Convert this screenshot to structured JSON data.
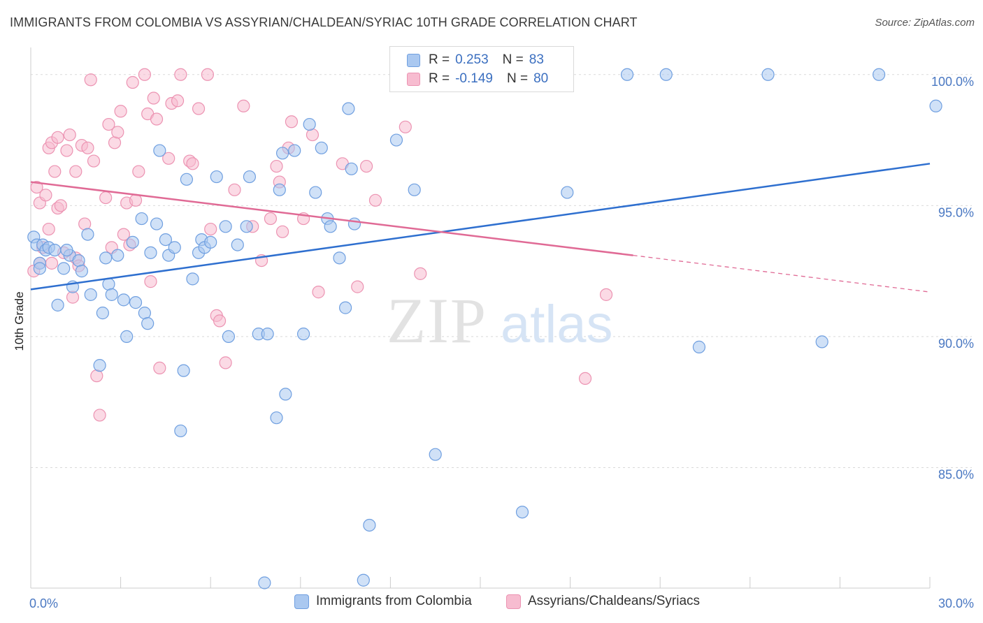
{
  "title": "IMMIGRANTS FROM COLOMBIA VS ASSYRIAN/CHALDEAN/SYRIAC 10TH GRADE CORRELATION CHART",
  "source": "Source: ZipAtlas.com",
  "watermark": {
    "zip": "ZIP",
    "atlas": "atlas"
  },
  "colors": {
    "blue_fill": "#aac8f0",
    "blue_stroke": "#6f9fe0",
    "blue_line": "#2e6fcf",
    "pink_fill": "#f7bcd0",
    "pink_stroke": "#ec93b2",
    "pink_line": "#e06a95",
    "tick_text": "#4a78c2",
    "grid": "#d9d9d9"
  },
  "legend": {
    "rows": [
      {
        "r_label": "R =",
        "r_value": "0.253",
        "n_label": "N =",
        "n_value": "83",
        "color": "blue"
      },
      {
        "r_label": "R =",
        "r_value": "-0.149",
        "n_label": "N =",
        "n_value": "80",
        "color": "pink"
      }
    ]
  },
  "bottom_legend": [
    "Immigrants from Colombia",
    "Assyrians/Chaldeans/Syriacs"
  ],
  "chart_data": {
    "type": "scatter",
    "title": "IMMIGRANTS FROM COLOMBIA VS ASSYRIAN/CHALDEAN/SYRIAC 10TH GRADE CORRELATION CHART",
    "xlabel": "",
    "ylabel": "10th Grade",
    "xlim": [
      0,
      30
    ],
    "ylim": [
      80.4,
      101.3
    ],
    "x_tick_labels": [
      "0.0%",
      "30.0%"
    ],
    "y_ticks": [
      85,
      90,
      95,
      100
    ],
    "y_tick_labels": [
      "85.0%",
      "90.0%",
      "95.0%",
      "100.0%"
    ],
    "grid": true,
    "legend_position": "top-center",
    "series": [
      {
        "name": "Immigrants from Colombia",
        "color": "blue",
        "trend": {
          "x0": 0,
          "y0": 91.8,
          "x1": 30,
          "y1": 96.6
        },
        "points": [
          [
            0.1,
            93.8
          ],
          [
            0.2,
            93.5
          ],
          [
            0.3,
            92.8
          ],
          [
            0.4,
            93.5
          ],
          [
            0.5,
            93.3
          ],
          [
            0.6,
            93.4
          ],
          [
            0.8,
            93.3
          ],
          [
            0.9,
            91.2
          ],
          [
            1.1,
            92.6
          ],
          [
            1.3,
            93.1
          ],
          [
            1.4,
            91.9
          ],
          [
            1.6,
            92.9
          ],
          [
            1.7,
            92.5
          ],
          [
            1.9,
            93.9
          ],
          [
            2.0,
            91.6
          ],
          [
            2.3,
            88.9
          ],
          [
            2.4,
            90.9
          ],
          [
            2.5,
            93.0
          ],
          [
            2.6,
            92.0
          ],
          [
            2.7,
            91.6
          ],
          [
            2.9,
            93.1
          ],
          [
            3.1,
            91.4
          ],
          [
            3.2,
            90.0
          ],
          [
            3.4,
            93.6
          ],
          [
            3.5,
            91.3
          ],
          [
            3.7,
            94.5
          ],
          [
            3.8,
            90.9
          ],
          [
            3.9,
            90.5
          ],
          [
            4.0,
            93.2
          ],
          [
            4.2,
            94.3
          ],
          [
            4.3,
            97.1
          ],
          [
            4.5,
            93.7
          ],
          [
            4.6,
            93.1
          ],
          [
            4.8,
            93.4
          ],
          [
            5.0,
            86.4
          ],
          [
            5.1,
            88.7
          ],
          [
            5.2,
            96.0
          ],
          [
            5.4,
            92.2
          ],
          [
            5.6,
            93.2
          ],
          [
            5.7,
            93.7
          ],
          [
            5.8,
            93.4
          ],
          [
            6.0,
            93.6
          ],
          [
            6.2,
            96.1
          ],
          [
            6.5,
            94.2
          ],
          [
            6.6,
            90.0
          ],
          [
            6.9,
            93.5
          ],
          [
            7.2,
            94.2
          ],
          [
            7.3,
            96.1
          ],
          [
            7.6,
            90.1
          ],
          [
            7.8,
            80.6
          ],
          [
            7.9,
            90.1
          ],
          [
            8.2,
            86.9
          ],
          [
            8.3,
            95.6
          ],
          [
            8.4,
            97.0
          ],
          [
            8.5,
            87.8
          ],
          [
            8.8,
            97.1
          ],
          [
            9.1,
            90.1
          ],
          [
            9.3,
            98.1
          ],
          [
            9.5,
            95.5
          ],
          [
            9.7,
            97.2
          ],
          [
            9.9,
            94.5
          ],
          [
            10.0,
            94.2
          ],
          [
            10.3,
            93.0
          ],
          [
            10.5,
            91.1
          ],
          [
            10.6,
            98.7
          ],
          [
            10.7,
            96.4
          ],
          [
            10.8,
            94.3
          ],
          [
            11.1,
            80.7
          ],
          [
            11.3,
            82.8
          ],
          [
            12.2,
            97.5
          ],
          [
            12.8,
            95.6
          ],
          [
            13.5,
            85.5
          ],
          [
            13.6,
            100.0
          ],
          [
            16.4,
            83.3
          ],
          [
            17.9,
            95.5
          ],
          [
            19.9,
            100.0
          ],
          [
            21.2,
            100.0
          ],
          [
            22.3,
            89.6
          ],
          [
            24.6,
            100.0
          ],
          [
            26.4,
            89.8
          ],
          [
            28.3,
            100.0
          ],
          [
            30.2,
            98.8
          ],
          [
            0.3,
            92.6
          ],
          [
            1.2,
            93.3
          ]
        ]
      },
      {
        "name": "Assyrians/Chaldeans/Syriacs",
        "color": "pink",
        "trend": {
          "x0": 0,
          "y0": 95.9,
          "x1": 20.1,
          "y1": 93.1,
          "dash_x1": 30,
          "dash_y1": 91.7
        },
        "points": [
          [
            0.1,
            92.5
          ],
          [
            0.2,
            95.7
          ],
          [
            0.3,
            95.1
          ],
          [
            0.3,
            92.8
          ],
          [
            0.4,
            93.4
          ],
          [
            0.5,
            95.4
          ],
          [
            0.6,
            94.1
          ],
          [
            0.6,
            97.2
          ],
          [
            0.7,
            97.4
          ],
          [
            0.7,
            92.8
          ],
          [
            0.8,
            96.3
          ],
          [
            0.9,
            94.9
          ],
          [
            0.9,
            97.6
          ],
          [
            1.0,
            95.0
          ],
          [
            1.1,
            93.2
          ],
          [
            1.2,
            97.1
          ],
          [
            1.3,
            97.7
          ],
          [
            1.4,
            91.5
          ],
          [
            1.5,
            93.0
          ],
          [
            1.5,
            96.3
          ],
          [
            1.6,
            92.7
          ],
          [
            1.7,
            97.3
          ],
          [
            1.8,
            94.3
          ],
          [
            1.9,
            97.2
          ],
          [
            2.0,
            99.8
          ],
          [
            2.1,
            96.7
          ],
          [
            2.2,
            88.5
          ],
          [
            2.3,
            87.0
          ],
          [
            2.5,
            95.3
          ],
          [
            2.6,
            98.1
          ],
          [
            2.7,
            93.4
          ],
          [
            2.8,
            97.4
          ],
          [
            2.9,
            97.8
          ],
          [
            3.0,
            98.6
          ],
          [
            3.1,
            93.9
          ],
          [
            3.2,
            95.1
          ],
          [
            3.3,
            93.5
          ],
          [
            3.4,
            99.7
          ],
          [
            3.5,
            95.2
          ],
          [
            3.6,
            96.3
          ],
          [
            3.8,
            100.0
          ],
          [
            3.9,
            98.5
          ],
          [
            4.0,
            92.1
          ],
          [
            4.1,
            99.1
          ],
          [
            4.2,
            98.3
          ],
          [
            4.3,
            88.8
          ],
          [
            4.6,
            96.8
          ],
          [
            4.7,
            98.9
          ],
          [
            4.9,
            99.0
          ],
          [
            5.0,
            100.0
          ],
          [
            5.3,
            96.7
          ],
          [
            5.4,
            96.6
          ],
          [
            5.6,
            98.7
          ],
          [
            5.9,
            100.0
          ],
          [
            6.0,
            94.1
          ],
          [
            6.2,
            90.8
          ],
          [
            6.3,
            90.6
          ],
          [
            6.5,
            89.0
          ],
          [
            6.8,
            95.6
          ],
          [
            7.1,
            98.8
          ],
          [
            7.4,
            94.2
          ],
          [
            7.7,
            92.9
          ],
          [
            8.0,
            94.5
          ],
          [
            8.2,
            96.5
          ],
          [
            8.3,
            95.9
          ],
          [
            8.4,
            94.0
          ],
          [
            8.6,
            97.2
          ],
          [
            8.7,
            98.2
          ],
          [
            9.1,
            94.5
          ],
          [
            9.4,
            97.7
          ],
          [
            9.6,
            91.7
          ],
          [
            10.4,
            96.6
          ],
          [
            10.9,
            91.9
          ],
          [
            11.2,
            96.5
          ],
          [
            11.5,
            95.2
          ],
          [
            12.5,
            98.0
          ],
          [
            13.0,
            92.4
          ],
          [
            14.3,
            100.0
          ],
          [
            18.5,
            88.4
          ],
          [
            19.2,
            91.6
          ]
        ]
      }
    ]
  }
}
